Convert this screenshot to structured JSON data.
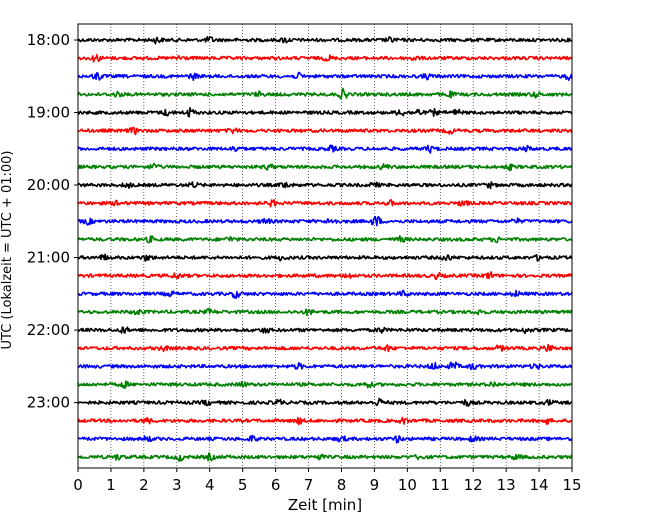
{
  "chart_data": {
    "type": "line",
    "title": "",
    "xlabel": "Zeit  [min]",
    "ylabel": "UTC (Lokalzeit = UTC + 01:00)",
    "xlim": [
      0,
      15
    ],
    "x_ticks": [
      0,
      1,
      2,
      3,
      4,
      5,
      6,
      7,
      8,
      9,
      10,
      11,
      12,
      13,
      14,
      15
    ],
    "x_grid": "dotted",
    "start_hour": 18,
    "trace_minutes": 15,
    "y_ticks": [
      "18:00",
      "19:00",
      "20:00",
      "21:00",
      "22:00",
      "23:00"
    ],
    "trace_colors": [
      "#000000",
      "#ff0000",
      "#0000ff",
      "#008000"
    ],
    "traces": [
      {
        "time": "18:00",
        "color": "#000000",
        "events": [
          [
            2.4,
            1.6
          ],
          [
            4.0,
            1.5
          ],
          [
            6.3,
            1.4
          ],
          [
            9.5,
            1.2
          ]
        ]
      },
      {
        "time": "18:15",
        "color": "#ff0000",
        "events": [
          [
            0.55,
            2.0
          ],
          [
            3.1,
            1.5
          ],
          [
            7.6,
            1.3
          ],
          [
            10.2,
            1.2
          ]
        ]
      },
      {
        "time": "18:30",
        "color": "#0000ff",
        "events": [
          [
            0.6,
            2.2
          ],
          [
            3.5,
            1.5
          ],
          [
            6.7,
            1.4
          ],
          [
            10.6,
            1.3
          ],
          [
            14.9,
            1.6
          ]
        ]
      },
      {
        "time": "18:45",
        "color": "#008000",
        "events": [
          [
            1.2,
            1.3
          ],
          [
            5.5,
            1.2
          ],
          [
            8.05,
            2.6
          ],
          [
            11.3,
            1.3
          ],
          [
            13.9,
            1.3
          ]
        ]
      },
      {
        "time": "19:00",
        "color": "#000000",
        "events": [
          [
            2.7,
            1.6
          ],
          [
            3.4,
            2.4
          ],
          [
            9.8,
            1.8
          ],
          [
            10.3,
            1.9
          ],
          [
            10.8,
            1.5
          ],
          [
            11.5,
            1.4
          ]
        ]
      },
      {
        "time": "19:15",
        "color": "#ff0000",
        "events": [
          [
            1.7,
            1.6
          ],
          [
            4.7,
            1.3
          ],
          [
            11.3,
            1.3
          ]
        ]
      },
      {
        "time": "19:30",
        "color": "#0000ff",
        "events": [
          [
            4.8,
            1.5
          ],
          [
            7.7,
            1.4
          ],
          [
            10.7,
            1.8
          ],
          [
            13.6,
            1.3
          ]
        ]
      },
      {
        "time": "19:45",
        "color": "#008000",
        "events": [
          [
            2.3,
            1.6
          ],
          [
            5.8,
            1.3
          ],
          [
            9.3,
            1.4
          ],
          [
            13.1,
            1.3
          ]
        ]
      },
      {
        "time": "20:00",
        "color": "#000000",
        "events": [
          [
            1.5,
            1.3
          ],
          [
            3.5,
            1.4
          ],
          [
            6.3,
            1.7
          ],
          [
            9.0,
            1.2
          ],
          [
            12.5,
            1.3
          ]
        ]
      },
      {
        "time": "20:15",
        "color": "#ff0000",
        "events": [
          [
            1.2,
            1.3
          ],
          [
            5.9,
            1.5
          ],
          [
            9.5,
            1.2
          ],
          [
            11.7,
            1.6
          ]
        ]
      },
      {
        "time": "20:30",
        "color": "#0000ff",
        "events": [
          [
            0.3,
            1.4
          ],
          [
            5.7,
            1.5
          ],
          [
            7.7,
            2.2
          ],
          [
            9.05,
            3.2
          ],
          [
            13.3,
            1.3
          ]
        ]
      },
      {
        "time": "20:45",
        "color": "#008000",
        "events": [
          [
            2.2,
            1.4
          ],
          [
            4.6,
            1.3
          ],
          [
            9.8,
            1.4
          ],
          [
            12.7,
            1.3
          ]
        ]
      },
      {
        "time": "21:00",
        "color": "#000000",
        "events": [
          [
            0.8,
            1.4
          ],
          [
            2.1,
            1.5
          ],
          [
            6.2,
            1.3
          ],
          [
            11.2,
            1.7
          ],
          [
            14.0,
            1.3
          ]
        ]
      },
      {
        "time": "21:15",
        "color": "#ff0000",
        "events": [
          [
            3.0,
            1.4
          ],
          [
            8.2,
            1.4
          ],
          [
            10.9,
            1.4
          ],
          [
            12.5,
            1.8
          ]
        ]
      },
      {
        "time": "21:30",
        "color": "#0000ff",
        "events": [
          [
            2.8,
            1.3
          ],
          [
            4.8,
            2.0
          ],
          [
            9.9,
            1.4
          ],
          [
            13.3,
            1.4
          ]
        ]
      },
      {
        "time": "21:45",
        "color": "#008000",
        "events": [
          [
            1.8,
            1.4
          ],
          [
            4.0,
            1.3
          ],
          [
            7.0,
            1.5
          ],
          [
            12.2,
            1.3
          ]
        ]
      },
      {
        "time": "22:00",
        "color": "#000000",
        "events": [
          [
            1.4,
            1.6
          ],
          [
            5.7,
            1.3
          ],
          [
            9.2,
            1.4
          ],
          [
            13.6,
            1.3
          ]
        ]
      },
      {
        "time": "22:15",
        "color": "#ff0000",
        "events": [
          [
            2.6,
            1.3
          ],
          [
            9.4,
            1.4
          ],
          [
            12.8,
            1.3
          ],
          [
            14.3,
            2.0
          ]
        ]
      },
      {
        "time": "22:30",
        "color": "#0000ff",
        "events": [
          [
            6.7,
            1.4
          ],
          [
            10.8,
            1.8
          ],
          [
            11.4,
            2.4
          ],
          [
            12.0,
            1.4
          ],
          [
            13.9,
            1.3
          ]
        ]
      },
      {
        "time": "22:45",
        "color": "#008000",
        "events": [
          [
            1.4,
            1.6
          ],
          [
            5.0,
            1.3
          ],
          [
            8.8,
            1.4
          ],
          [
            12.6,
            1.3
          ]
        ]
      },
      {
        "time": "23:00",
        "color": "#000000",
        "events": [
          [
            3.9,
            1.3
          ],
          [
            6.1,
            1.4
          ],
          [
            9.15,
            1.9
          ],
          [
            11.8,
            1.5
          ],
          [
            14.3,
            1.3
          ]
        ]
      },
      {
        "time": "23:15",
        "color": "#ff0000",
        "events": [
          [
            2.1,
            1.3
          ],
          [
            6.7,
            1.4
          ],
          [
            9.9,
            1.4
          ],
          [
            14.2,
            1.6
          ]
        ]
      },
      {
        "time": "23:30",
        "color": "#0000ff",
        "events": [
          [
            2.1,
            1.4
          ],
          [
            5.3,
            1.4
          ],
          [
            8.0,
            1.4
          ],
          [
            9.7,
            1.6
          ],
          [
            12.0,
            1.3
          ]
        ]
      },
      {
        "time": "23:45",
        "color": "#008000",
        "events": [
          [
            1.2,
            1.3
          ],
          [
            3.1,
            1.8
          ],
          [
            4.0,
            1.6
          ],
          [
            7.3,
            1.3
          ],
          [
            10.4,
            1.3
          ],
          [
            13.3,
            1.3
          ]
        ]
      }
    ]
  }
}
